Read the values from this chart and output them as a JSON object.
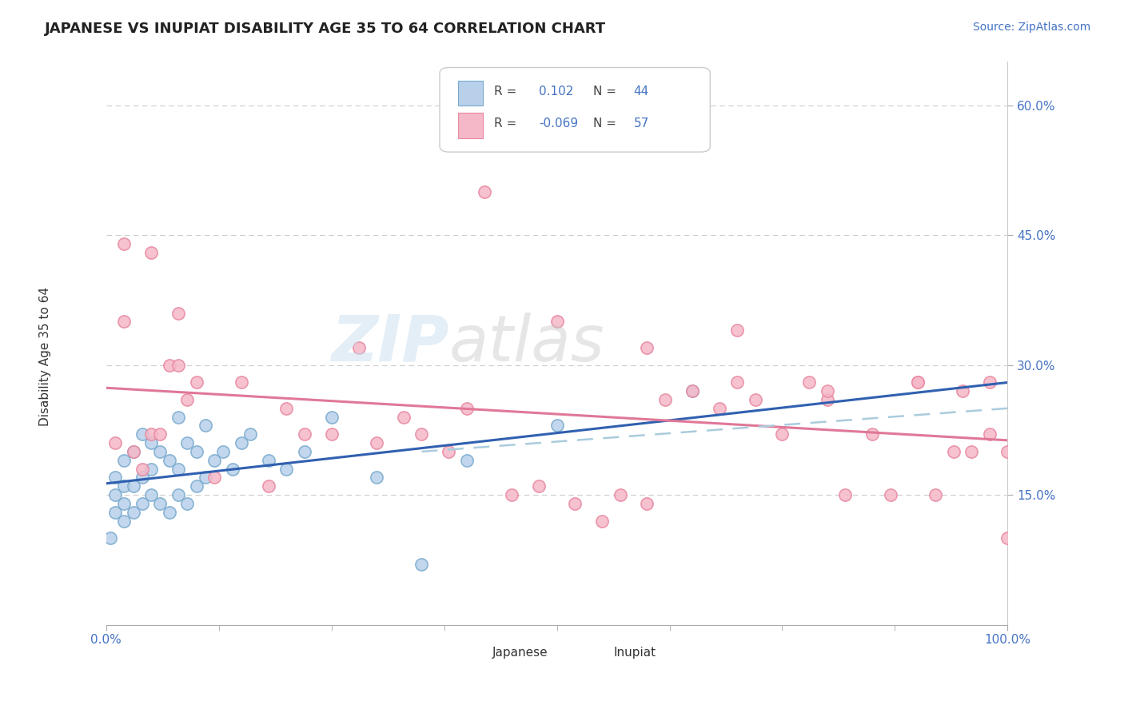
{
  "title": "JAPANESE VS INUPIAT DISABILITY AGE 35 TO 64 CORRELATION CHART",
  "source_text": "Source: ZipAtlas.com",
  "ylabel": "Disability Age 35 to 64",
  "xlim": [
    0,
    100
  ],
  "ylim": [
    0,
    65
  ],
  "ytick_labels": [
    "15.0%",
    "30.0%",
    "45.0%",
    "60.0%"
  ],
  "ytick_values": [
    15,
    30,
    45,
    60
  ],
  "xtick_labels": [
    "0.0%",
    "100.0%"
  ],
  "grid_color": "#cccccc",
  "background_color": "#ffffff",
  "japanese_face_color": "#b8d0ea",
  "japanese_edge_color": "#7aaace",
  "inupiat_face_color": "#f5b8c8",
  "inupiat_edge_color": "#e888a0",
  "japanese_line_color": "#3060b0",
  "inupiat_line_color": "#e07898",
  "inupiat_dashed_color": "#aaccdd",
  "legend_R_japanese": "0.102",
  "legend_N_japanese": "44",
  "legend_R_inupiat": "-0.069",
  "legend_N_inupiat": "57",
  "watermark_zip": "ZIP",
  "watermark_atlas": "atlas",
  "japanese_x": [
    0.5,
    1,
    1,
    1,
    2,
    2,
    2,
    2,
    3,
    3,
    3,
    4,
    4,
    4,
    5,
    5,
    5,
    6,
    6,
    7,
    7,
    8,
    8,
    8,
    9,
    9,
    10,
    10,
    11,
    11,
    12,
    13,
    14,
    15,
    16,
    18,
    20,
    22,
    25,
    30,
    35,
    40,
    50,
    65
  ],
  "japanese_y": [
    10,
    13,
    15,
    17,
    12,
    14,
    16,
    19,
    13,
    16,
    20,
    14,
    17,
    22,
    15,
    18,
    21,
    14,
    20,
    13,
    19,
    15,
    18,
    24,
    14,
    21,
    16,
    20,
    17,
    23,
    19,
    20,
    18,
    21,
    22,
    19,
    18,
    20,
    24,
    17,
    7,
    19,
    23,
    27
  ],
  "inupiat_x": [
    1,
    2,
    3,
    4,
    5,
    6,
    7,
    8,
    9,
    10,
    12,
    15,
    18,
    20,
    22,
    25,
    28,
    30,
    33,
    35,
    38,
    40,
    42,
    45,
    48,
    50,
    52,
    55,
    57,
    60,
    62,
    65,
    68,
    70,
    72,
    75,
    78,
    80,
    82,
    85,
    87,
    90,
    92,
    94,
    96,
    98,
    100,
    2,
    5,
    8,
    60,
    70,
    80,
    90,
    95,
    98,
    100
  ],
  "inupiat_y": [
    21,
    35,
    20,
    18,
    22,
    22,
    30,
    30,
    26,
    28,
    17,
    28,
    16,
    25,
    22,
    22,
    32,
    21,
    24,
    22,
    20,
    25,
    50,
    15,
    16,
    35,
    14,
    12,
    15,
    14,
    26,
    27,
    25,
    28,
    26,
    22,
    28,
    26,
    15,
    22,
    15,
    28,
    15,
    20,
    20,
    22,
    20,
    44,
    43,
    36,
    32,
    34,
    27,
    28,
    27,
    28,
    10
  ]
}
